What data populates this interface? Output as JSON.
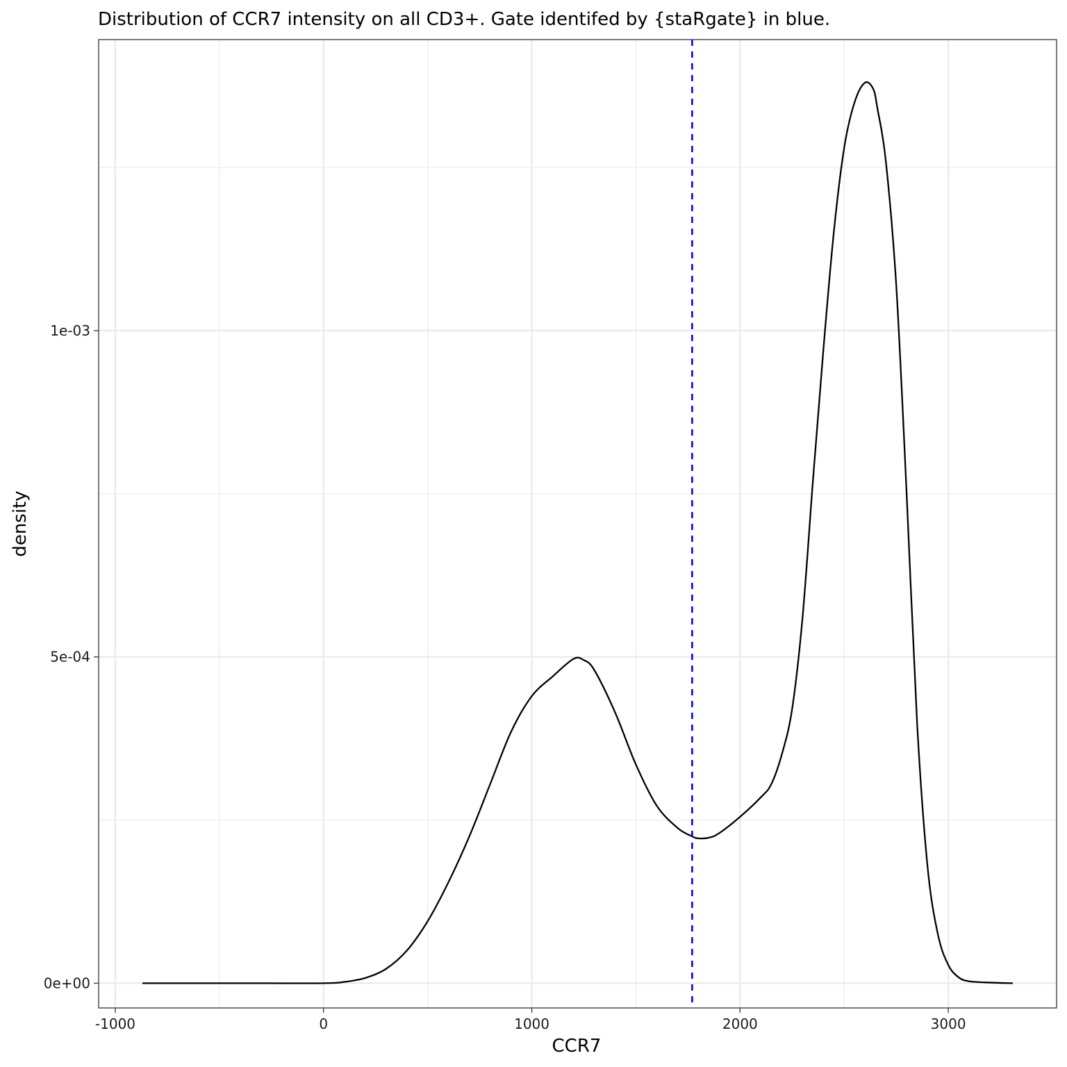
{
  "chart_data": {
    "type": "line",
    "title": "Distribution of CCR7 intensity on all CD3+. Gate identifed by {staRgate} in blue.",
    "xlabel": "CCR7",
    "ylabel": "density",
    "xlim": [
      -1080,
      3520
    ],
    "ylim": [
      -3.79e-05,
      0.001446
    ],
    "x_ticks": [
      -1000,
      0,
      1000,
      2000,
      3000
    ],
    "x_tick_labels": [
      "-1000",
      "0",
      "1000",
      "2000",
      "3000"
    ],
    "y_ticks": [
      0,
      0.0005,
      0.001
    ],
    "y_tick_labels": [
      "0e+00",
      "5e-04",
      "1e-03"
    ],
    "x_minor_ticks": [
      -500,
      500,
      1500,
      2500
    ],
    "y_minor_ticks": [
      0.00025,
      0.00075,
      0.00125
    ],
    "grid": true,
    "legend": "none",
    "gate": {
      "x": 1770,
      "color": "#0000ff",
      "linestyle": "dashed"
    },
    "series": [
      {
        "color": "#000000",
        "x": [
          -870,
          -600,
          -300,
          0,
          100,
          200,
          300,
          400,
          500,
          600,
          700,
          800,
          900,
          1000,
          1100,
          1200,
          1250,
          1300,
          1400,
          1500,
          1600,
          1700,
          1770,
          1800,
          1850,
          1900,
          2000,
          2100,
          2150,
          2200,
          2250,
          2300,
          2350,
          2400,
          2450,
          2500,
          2550,
          2600,
          2640,
          2660,
          2700,
          2750,
          2800,
          2850,
          2900,
          2950,
          3000,
          3050,
          3100,
          3200,
          3310
        ],
        "y": [
          0,
          0,
          0,
          0,
          2e-06,
          8e-06,
          2.2e-05,
          5e-05,
          9.5e-05,
          0.000155,
          0.000225,
          0.000305,
          0.000385,
          0.00044,
          0.00047,
          0.000497,
          0.000495,
          0.00048,
          0.000415,
          0.000335,
          0.000272,
          0.000238,
          0.000225,
          0.000222,
          0.000223,
          0.00023,
          0.000255,
          0.000285,
          0.000305,
          0.00035,
          0.00042,
          0.00056,
          0.00077,
          0.00097,
          0.00115,
          0.00128,
          0.00135,
          0.00138,
          0.00137,
          0.00134,
          0.00126,
          0.00107,
          0.00075,
          0.0004,
          0.00018,
          7.5e-05,
          2.8e-05,
          9e-06,
          3e-06,
          1e-06,
          0
        ]
      }
    ]
  }
}
